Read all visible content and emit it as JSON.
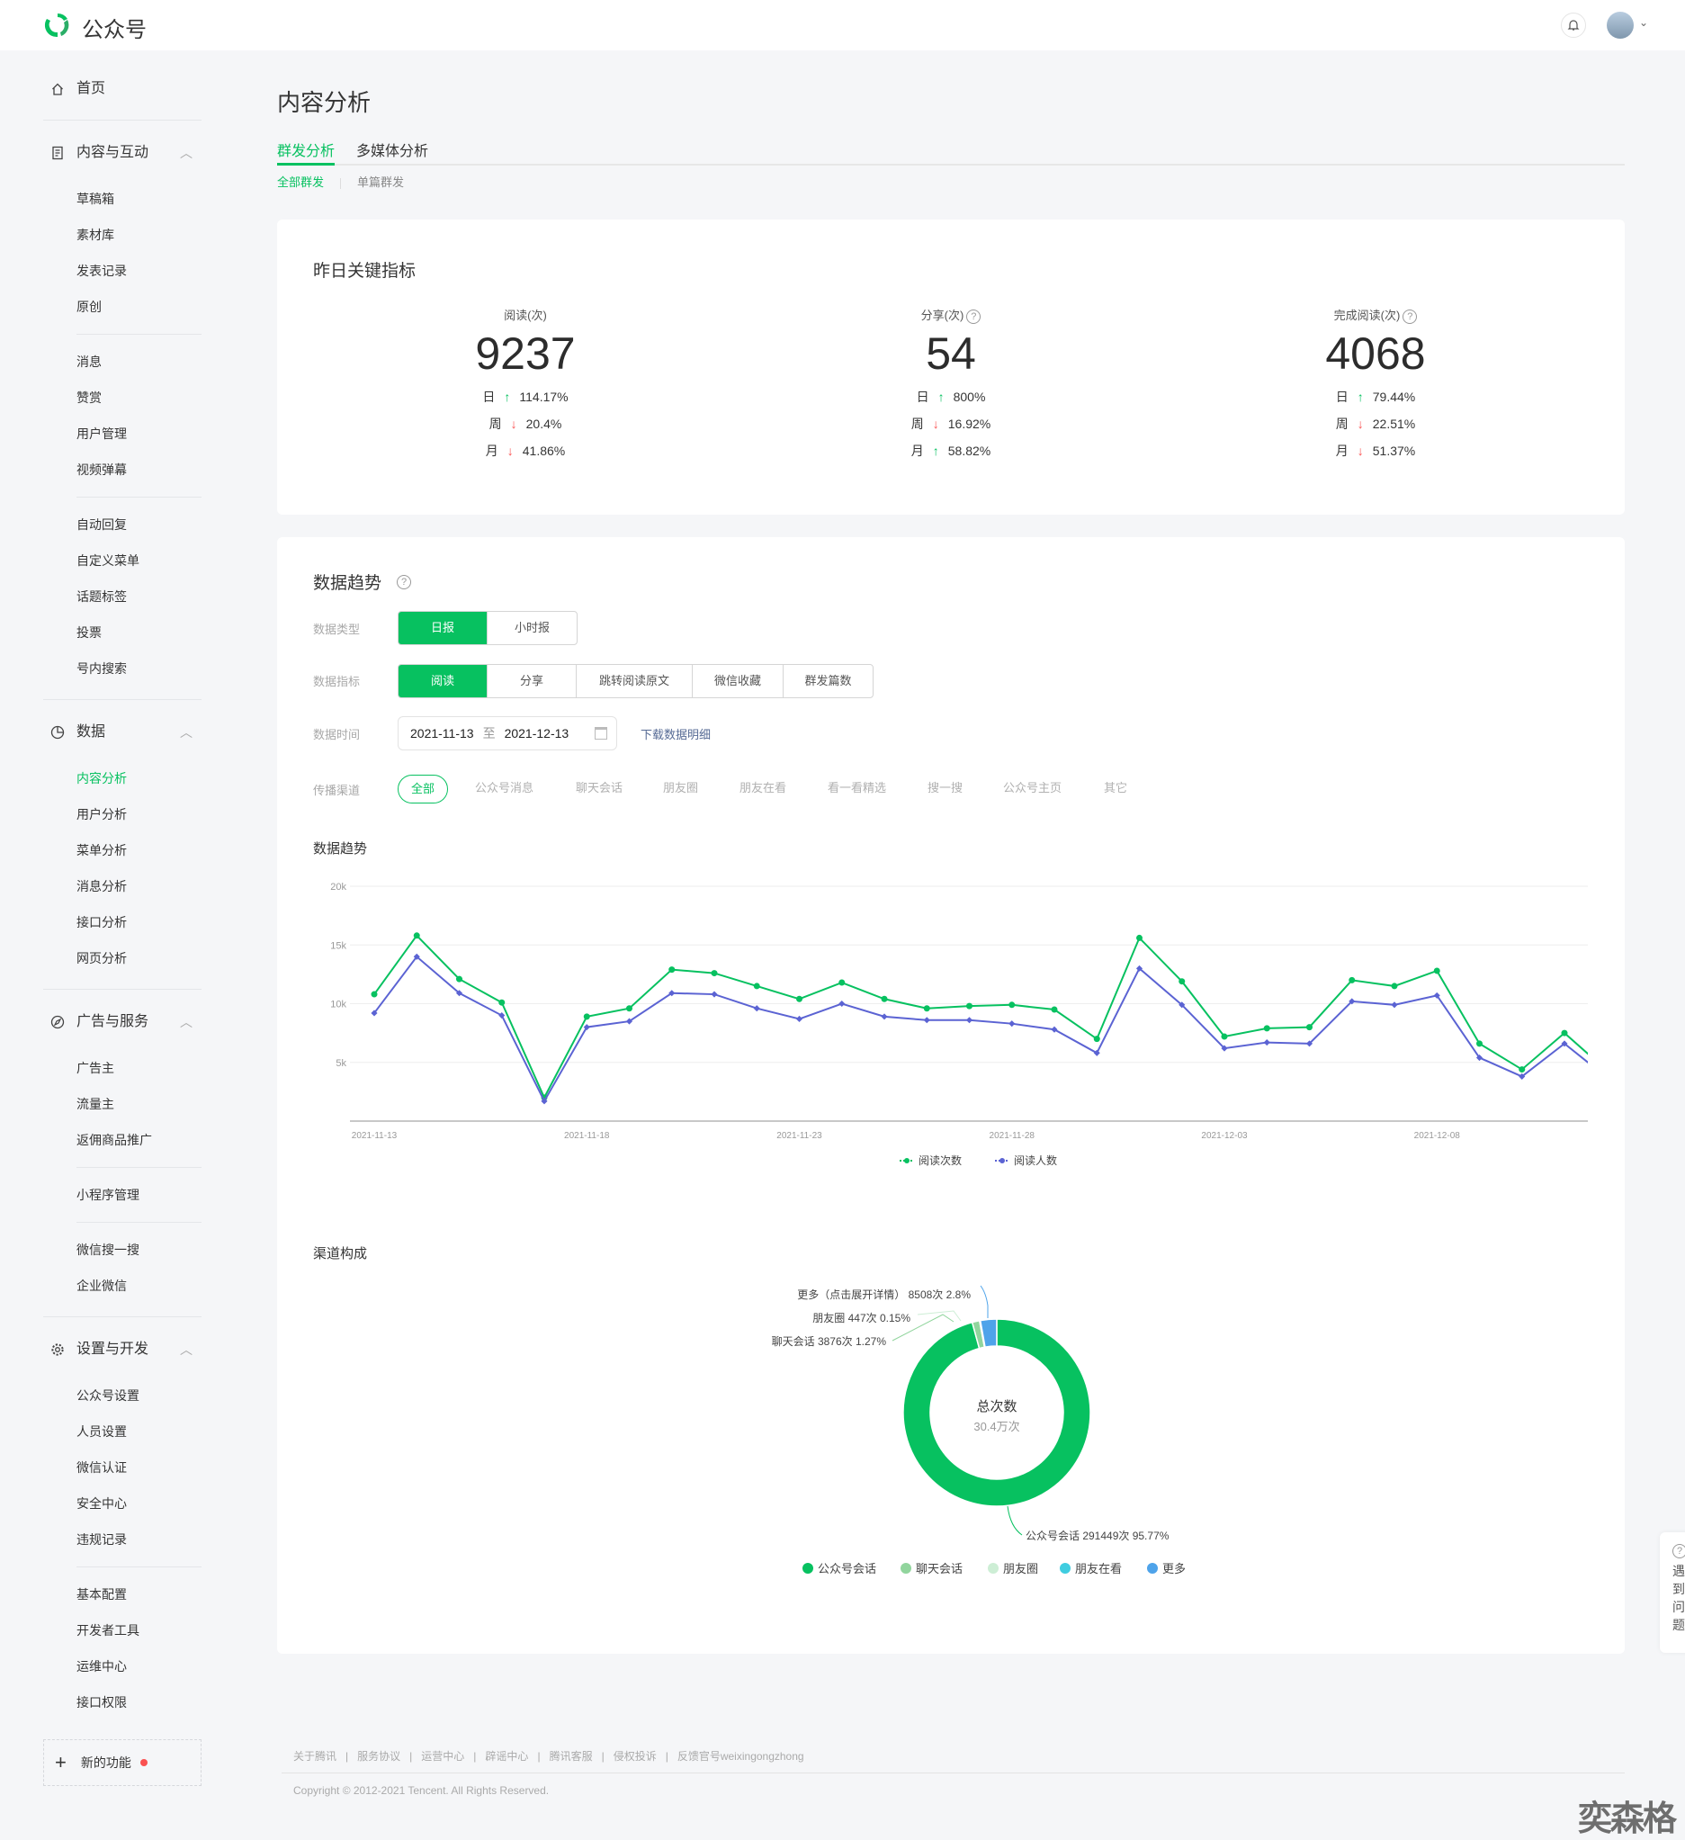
{
  "header": {
    "brand": "公众号",
    "notification_icon": "bell-icon",
    "avatar_chevron": "⌄"
  },
  "sidebar": {
    "home": "首页",
    "groups": [
      {
        "title": "内容与互动",
        "icon": "document-icon",
        "sections": [
          [
            "草稿箱",
            "素材库",
            "发表记录",
            "原创"
          ],
          [
            "消息",
            "赞赏",
            "用户管理",
            "视频弹幕"
          ],
          [
            "自动回复",
            "自定义菜单",
            "话题标签",
            "投票",
            "号内搜索"
          ]
        ]
      },
      {
        "title": "数据",
        "icon": "pie-chart-icon",
        "sections": [
          [
            "内容分析",
            "用户分析",
            "菜单分析",
            "消息分析",
            "接口分析",
            "网页分析"
          ]
        ]
      },
      {
        "title": "广告与服务",
        "icon": "compass-icon",
        "sections": [
          [
            "广告主",
            "流量主",
            "返佣商品推广"
          ],
          [
            "小程序管理"
          ],
          [
            "微信搜一搜",
            "企业微信"
          ]
        ]
      },
      {
        "title": "设置与开发",
        "icon": "gear-icon",
        "sections": [
          [
            "公众号设置",
            "人员设置",
            "微信认证",
            "安全中心",
            "违规记录"
          ],
          [
            "基本配置",
            "开发者工具",
            "运维中心",
            "接口权限"
          ]
        ]
      }
    ],
    "active_item": "内容分析",
    "new_feature": "新的功能"
  },
  "page": {
    "title": "内容分析",
    "tabs": [
      "群发分析",
      "多媒体分析"
    ],
    "subtabs": [
      "全部群发",
      "单篇群发"
    ]
  },
  "key_metrics": {
    "title": "昨日关键指标",
    "items": [
      {
        "label": "阅读(次)",
        "help": false,
        "value": "9237",
        "rows": [
          {
            "k": "日",
            "dir": "up",
            "v": "114.17%"
          },
          {
            "k": "周",
            "dir": "down",
            "v": "20.4%"
          },
          {
            "k": "月",
            "dir": "down",
            "v": "41.86%"
          }
        ]
      },
      {
        "label": "分享(次)",
        "help": true,
        "value": "54",
        "rows": [
          {
            "k": "日",
            "dir": "up",
            "v": "800%"
          },
          {
            "k": "周",
            "dir": "down",
            "v": "16.92%"
          },
          {
            "k": "月",
            "dir": "up",
            "v": "58.82%"
          }
        ]
      },
      {
        "label": "完成阅读(次)",
        "help": true,
        "value": "4068",
        "rows": [
          {
            "k": "日",
            "dir": "up",
            "v": "79.44%"
          },
          {
            "k": "周",
            "dir": "down",
            "v": "22.51%"
          },
          {
            "k": "月",
            "dir": "down",
            "v": "51.37%"
          }
        ]
      }
    ]
  },
  "trend": {
    "title": "数据趋势",
    "filters": {
      "type_label": "数据类型",
      "types": [
        "日报",
        "小时报"
      ],
      "metric_label": "数据指标",
      "metrics": [
        "阅读",
        "分享",
        "跳转阅读原文",
        "微信收藏",
        "群发篇数"
      ],
      "time_label": "数据时间",
      "start": "2021-11-13",
      "to": "至",
      "end": "2021-12-13",
      "download": "下载数据明细",
      "channel_label": "传播渠道",
      "channels": [
        "全部",
        "公众号消息",
        "聊天会话",
        "朋友圈",
        "朋友在看",
        "看一看精选",
        "搜一搜",
        "公众号主页",
        "其它"
      ]
    },
    "chart_title": "数据趋势",
    "channel_title": "渠道构成"
  },
  "chart_data": [
    {
      "type": "line",
      "title": "数据趋势",
      "x": [
        "2021-11-13",
        "2021-11-14",
        "2021-11-15",
        "2021-11-16",
        "2021-11-17",
        "2021-11-18",
        "2021-11-19",
        "2021-11-20",
        "2021-11-21",
        "2021-11-22",
        "2021-11-23",
        "2021-11-24",
        "2021-11-25",
        "2021-11-26",
        "2021-11-27",
        "2021-11-28",
        "2021-11-29",
        "2021-11-30",
        "2021-12-01",
        "2021-12-02",
        "2021-12-03",
        "2021-12-04",
        "2021-12-05",
        "2021-12-06",
        "2021-12-07",
        "2021-12-08",
        "2021-12-09",
        "2021-12-10",
        "2021-12-11",
        "2021-12-12"
      ],
      "x_tick_labels": [
        "2021-11-13",
        "2021-11-18",
        "2021-11-23",
        "2021-11-28",
        "2021-12-03",
        "2021-12-08"
      ],
      "y_tick_labels": [
        "20k",
        "15k",
        "10k",
        "5k"
      ],
      "ylim": [
        0,
        20000
      ],
      "grid": true,
      "legend_position": "bottom-center",
      "series": [
        {
          "name": "阅读次数",
          "color": "#07c160",
          "values": [
            10800,
            15800,
            12100,
            10100,
            2000,
            8900,
            9600,
            12900,
            12600,
            11500,
            10400,
            11800,
            10400,
            9600,
            9800,
            9900,
            9500,
            7000,
            15600,
            11900,
            7200,
            7900,
            8000,
            12000,
            11500,
            12800,
            6600,
            4400,
            7500,
            4300
          ]
        },
        {
          "name": "阅读人数",
          "color": "#5b63d3",
          "values": [
            9200,
            14000,
            10900,
            9000,
            1700,
            8000,
            8500,
            10900,
            10800,
            9600,
            8700,
            10000,
            8900,
            8600,
            8600,
            8300,
            7800,
            5800,
            13000,
            9900,
            6200,
            6700,
            6600,
            10200,
            9900,
            10700,
            5400,
            3800,
            6600,
            3700
          ]
        }
      ]
    },
    {
      "type": "pie",
      "title": "渠道构成",
      "center_label": "总次数",
      "center_value": "30.4万次",
      "slices": [
        {
          "name": "公众号会话",
          "count": 291449,
          "percent": 95.77,
          "color": "#07c160",
          "label": "公众号会话 291449次 95.77%"
        },
        {
          "name": "聊天会话",
          "count": 3876,
          "percent": 1.27,
          "color": "#91d59d",
          "label": "聊天会话 3876次 1.27%"
        },
        {
          "name": "朋友圈",
          "count": 447,
          "percent": 0.15,
          "color": "#cdeed5",
          "label": "朋友圈 447次 0.15%"
        },
        {
          "name": "朋友在看",
          "count": 0,
          "percent": 0,
          "color": "#3fcde0",
          "label": ""
        },
        {
          "name": "更多",
          "count": 8508,
          "percent": 2.8,
          "color": "#4ea3ea",
          "label": "更多（点击展开详情） 8508次 2.8%"
        }
      ]
    }
  ],
  "footer": {
    "links": [
      "关于腾讯",
      "服务协议",
      "运营中心",
      "辟谣中心",
      "腾讯客服",
      "侵权投诉",
      "反馈官号weixingongzhong"
    ],
    "separator": "|",
    "copyright": "Copyright © 2012-2021 Tencent. All Rights Reserved."
  },
  "help_widget": {
    "icon": "?",
    "text": "遇到问题"
  },
  "watermark": "奕森格"
}
